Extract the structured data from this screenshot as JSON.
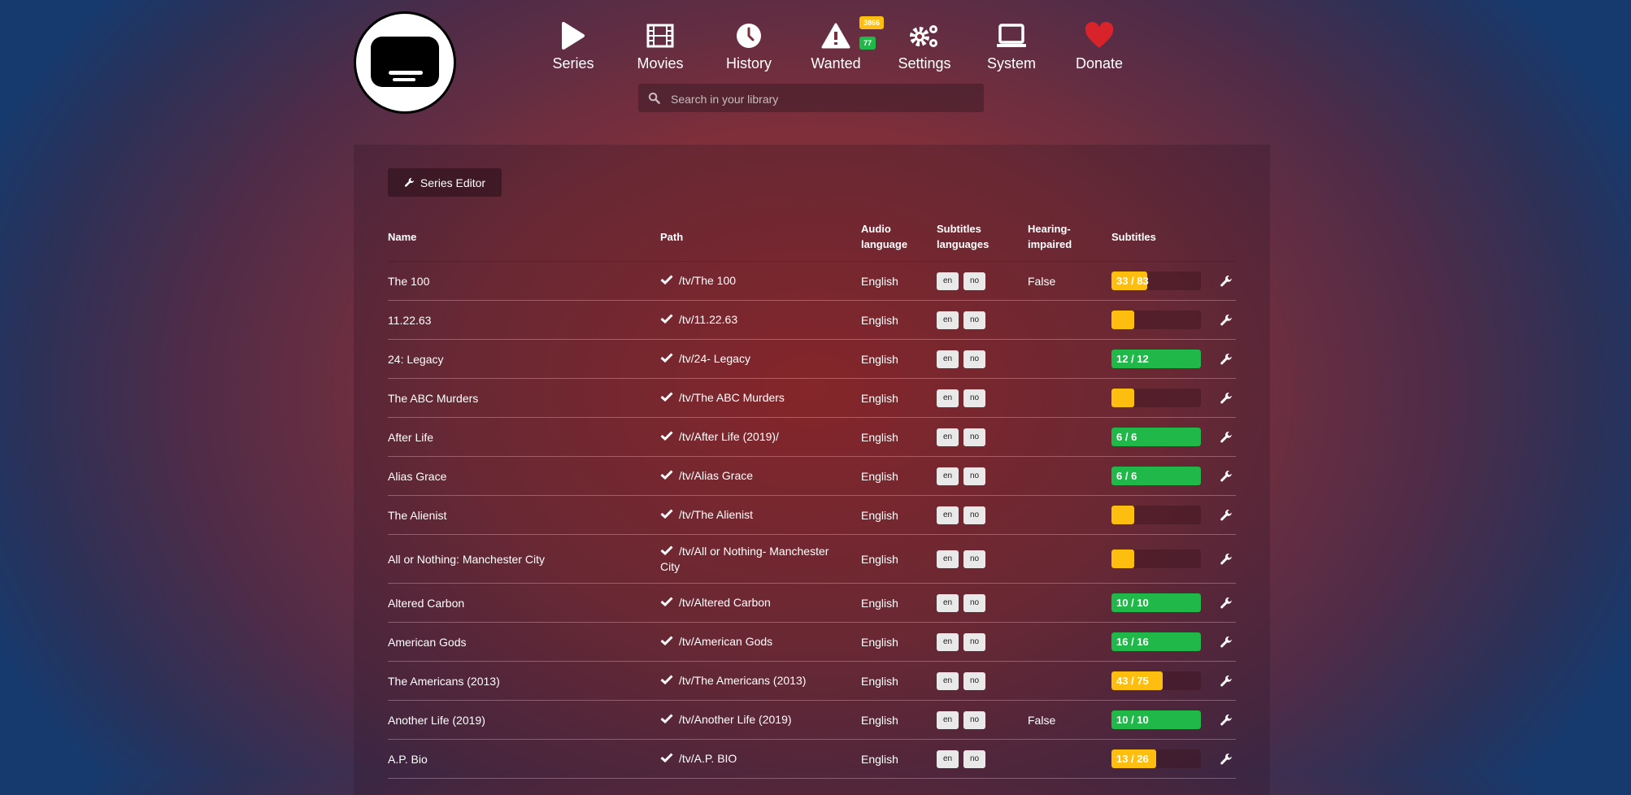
{
  "colors": {
    "warning": "#fdbe10",
    "success": "#21b84a",
    "heart": "#d8232a"
  },
  "nav": {
    "items": [
      {
        "label": "Series",
        "icon": "play-icon"
      },
      {
        "label": "Movies",
        "icon": "film-icon"
      },
      {
        "label": "History",
        "icon": "clock-icon"
      },
      {
        "label": "Wanted",
        "icon": "warning-icon",
        "badges": [
          "3866",
          "77"
        ]
      },
      {
        "label": "Settings",
        "icon": "gears-icon"
      },
      {
        "label": "System",
        "icon": "laptop-icon"
      },
      {
        "label": "Donate",
        "icon": "heart-icon"
      }
    ]
  },
  "search": {
    "placeholder": "Search in your library"
  },
  "toolbar": {
    "series_editor_label": "Series Editor"
  },
  "table": {
    "headers": {
      "name": "Name",
      "path": "Path",
      "audio": "Audio language",
      "subs_langs": "Subtitles languages",
      "hi": "Hearing-impaired",
      "subtitles": "Subtitles"
    },
    "rows": [
      {
        "name": "The 100",
        "path": "/tv/The 100",
        "audio": "English",
        "langs": [
          "en",
          "no"
        ],
        "hi": "False",
        "have": 33,
        "total": 83,
        "label": "33 / 83"
      },
      {
        "name": "11.22.63",
        "path": "/tv/11.22.63",
        "audio": "English",
        "langs": [
          "en",
          "no"
        ],
        "hi": "",
        "have": 0,
        "total": null,
        "label": ""
      },
      {
        "name": "24: Legacy",
        "path": "/tv/24- Legacy",
        "audio": "English",
        "langs": [
          "en",
          "no"
        ],
        "hi": "",
        "have": 12,
        "total": 12,
        "label": "12 / 12"
      },
      {
        "name": "The ABC Murders",
        "path": "/tv/The ABC Murders",
        "audio": "English",
        "langs": [
          "en",
          "no"
        ],
        "hi": "",
        "have": 0,
        "total": null,
        "label": ""
      },
      {
        "name": "After Life",
        "path": "/tv/After Life (2019)/",
        "audio": "English",
        "langs": [
          "en",
          "no"
        ],
        "hi": "",
        "have": 6,
        "total": 6,
        "label": "6 / 6"
      },
      {
        "name": "Alias Grace",
        "path": "/tv/Alias Grace",
        "audio": "English",
        "langs": [
          "en",
          "no"
        ],
        "hi": "",
        "have": 6,
        "total": 6,
        "label": "6 / 6"
      },
      {
        "name": "The Alienist",
        "path": "/tv/The Alienist",
        "audio": "English",
        "langs": [
          "en",
          "no"
        ],
        "hi": "",
        "have": 0,
        "total": null,
        "label": ""
      },
      {
        "name": "All or Nothing: Manchester City",
        "path": "/tv/All or Nothing- Manchester City",
        "audio": "English",
        "langs": [
          "en",
          "no"
        ],
        "hi": "",
        "have": 0,
        "total": null,
        "label": ""
      },
      {
        "name": "Altered Carbon",
        "path": "/tv/Altered Carbon",
        "audio": "English",
        "langs": [
          "en",
          "no"
        ],
        "hi": "",
        "have": 10,
        "total": 10,
        "label": "10 / 10"
      },
      {
        "name": "American Gods",
        "path": "/tv/American Gods",
        "audio": "English",
        "langs": [
          "en",
          "no"
        ],
        "hi": "",
        "have": 16,
        "total": 16,
        "label": "16 / 16"
      },
      {
        "name": "The Americans (2013)",
        "path": "/tv/The Americans (2013)",
        "audio": "English",
        "langs": [
          "en",
          "no"
        ],
        "hi": "",
        "have": 43,
        "total": 75,
        "label": "43 / 75"
      },
      {
        "name": "Another Life (2019)",
        "path": "/tv/Another Life (2019)",
        "audio": "English",
        "langs": [
          "en",
          "no"
        ],
        "hi": "False",
        "have": 10,
        "total": 10,
        "label": "10 / 10"
      },
      {
        "name": "A.P. Bio",
        "path": "/tv/A.P. BIO",
        "audio": "English",
        "langs": [
          "en",
          "no"
        ],
        "hi": "",
        "have": 13,
        "total": 26,
        "label": "13 / 26"
      }
    ]
  }
}
